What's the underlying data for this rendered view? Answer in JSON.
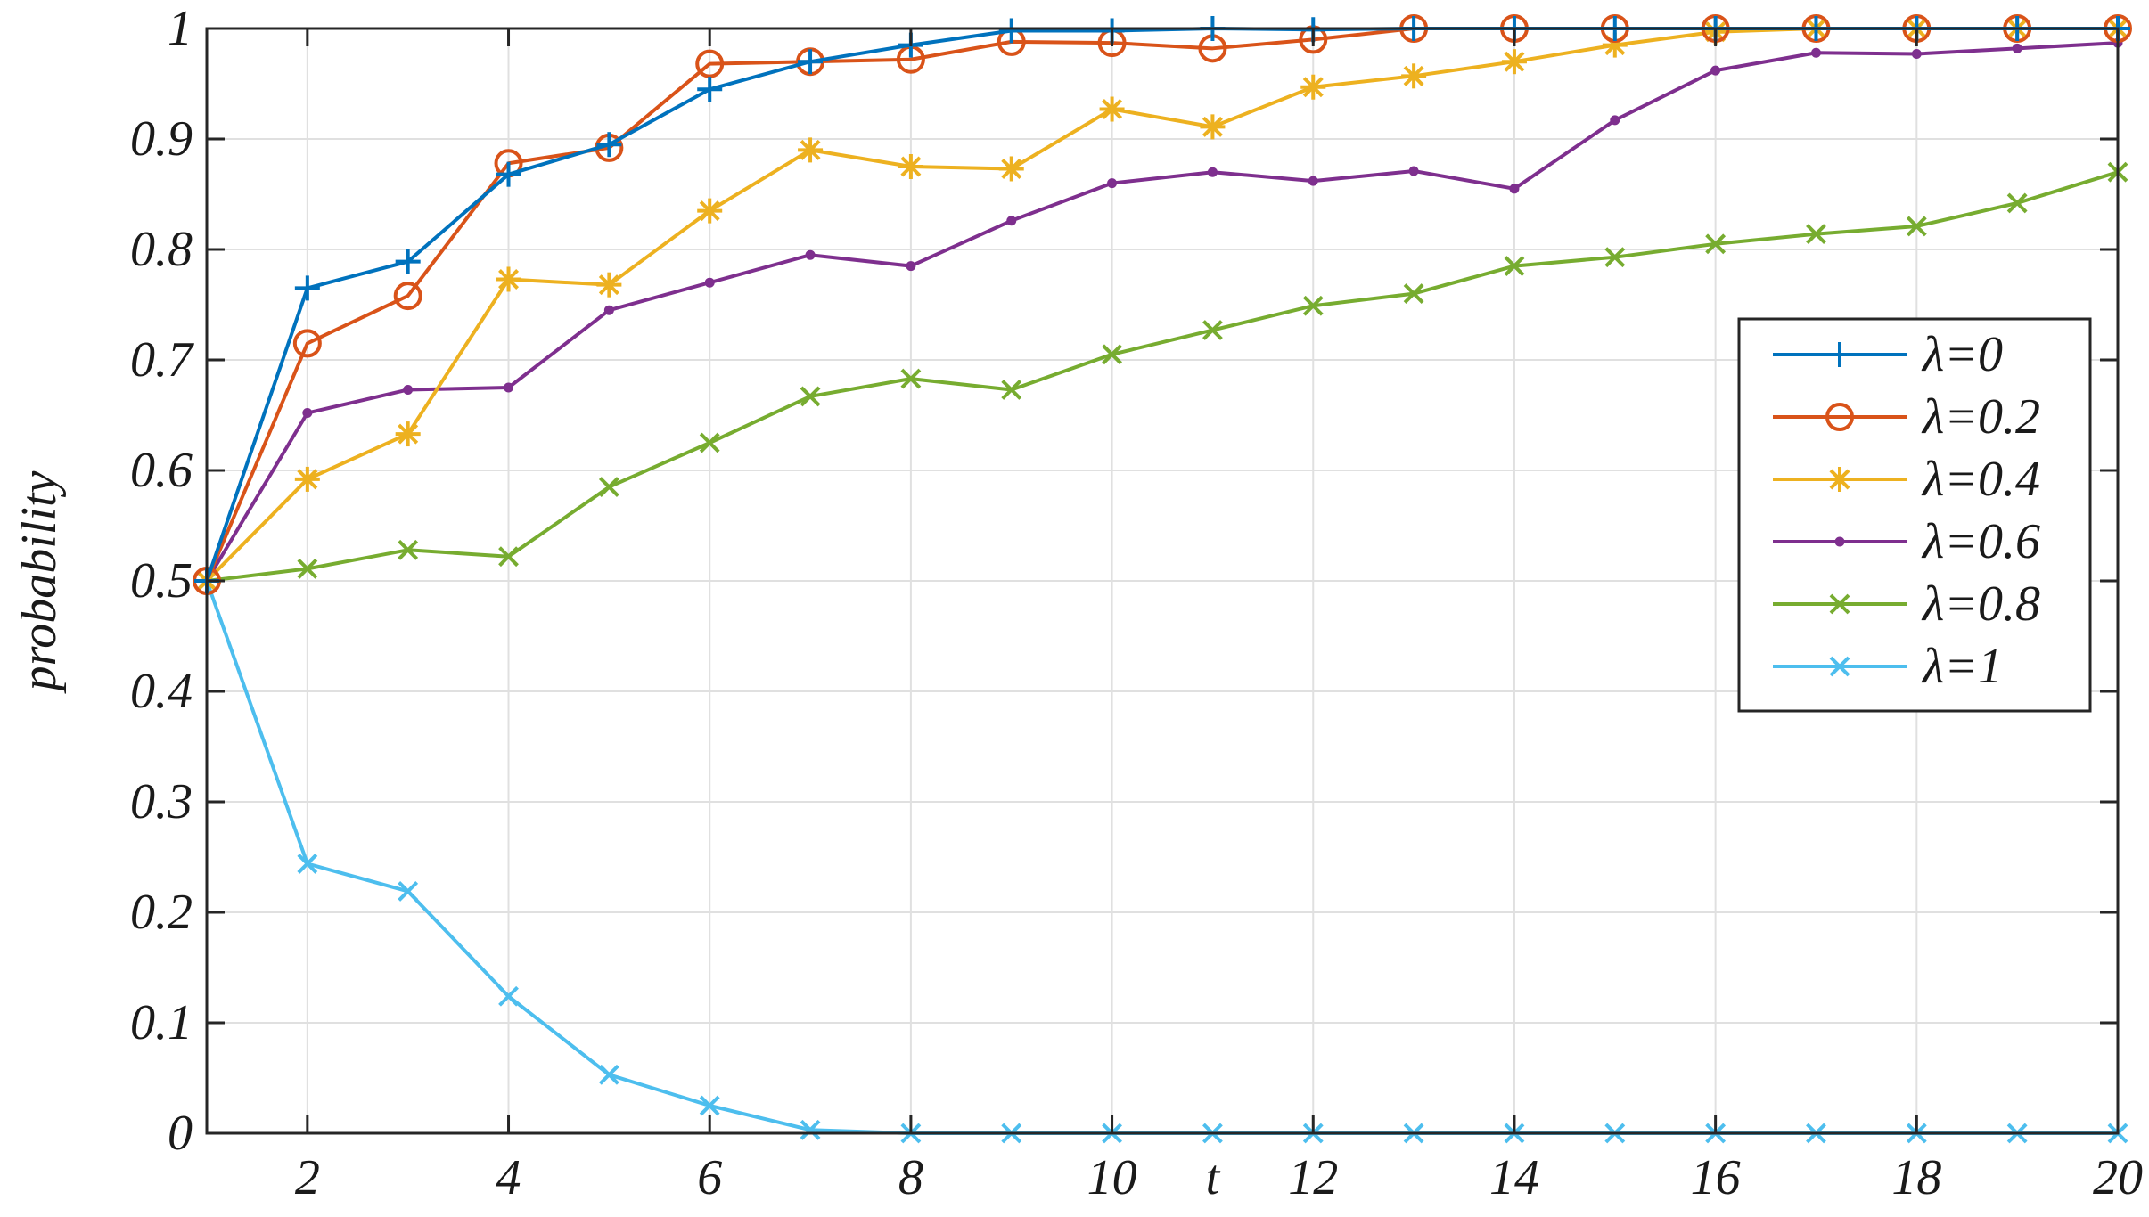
{
  "chart_data": {
    "type": "line",
    "title": "",
    "xlabel": "t",
    "ylabel": "probability",
    "xlim": [
      1,
      20
    ],
    "ylim": [
      0,
      1
    ],
    "x_ticks": [
      2,
      4,
      6,
      8,
      10,
      12,
      14,
      16,
      18,
      20
    ],
    "y_ticks": [
      0,
      0.1,
      0.2,
      0.3,
      0.4,
      0.5,
      0.6,
      0.7,
      0.8,
      0.9,
      1
    ],
    "grid": true,
    "legend_position": "right",
    "x": [
      1,
      2,
      3,
      4,
      5,
      6,
      7,
      8,
      9,
      10,
      11,
      12,
      13,
      14,
      15,
      16,
      17,
      18,
      19,
      20
    ],
    "series": [
      {
        "name": "λ=0",
        "color": "#0072BD",
        "marker": "plus",
        "values": [
          0.5,
          0.765,
          0.789,
          0.868,
          0.895,
          0.945,
          0.97,
          0.985,
          0.998,
          0.998,
          1.0,
          0.999,
          1.0,
          1.0,
          1.0,
          1.0,
          1.0,
          1.0,
          1.0,
          1.0
        ]
      },
      {
        "name": "λ=0.2",
        "color": "#D95319",
        "marker": "circle",
        "values": [
          0.5,
          0.715,
          0.758,
          0.878,
          0.892,
          0.968,
          0.97,
          0.972,
          0.988,
          0.987,
          0.982,
          0.99,
          1.0,
          1.0,
          1.0,
          1.0,
          1.0,
          1.0,
          1.0,
          1.0
        ]
      },
      {
        "name": "λ=0.4",
        "color": "#EDB120",
        "marker": "asterisk",
        "values": [
          0.5,
          0.592,
          0.633,
          0.773,
          0.768,
          0.835,
          0.89,
          0.875,
          0.873,
          0.927,
          0.911,
          0.947,
          0.957,
          0.97,
          0.985,
          0.997,
          1.0,
          1.0,
          1.0,
          1.0
        ]
      },
      {
        "name": "λ=0.6",
        "color": "#7E2F8E",
        "marker": "dot",
        "values": [
          0.5,
          0.652,
          0.673,
          0.675,
          0.745,
          0.77,
          0.795,
          0.785,
          0.826,
          0.86,
          0.87,
          0.862,
          0.871,
          0.855,
          0.917,
          0.962,
          0.978,
          0.977,
          0.982,
          0.987
        ]
      },
      {
        "name": "λ=0.8",
        "color": "#77AC30",
        "marker": "x",
        "values": [
          0.5,
          0.511,
          0.528,
          0.522,
          0.585,
          0.625,
          0.667,
          0.683,
          0.673,
          0.705,
          0.727,
          0.749,
          0.76,
          0.785,
          0.793,
          0.805,
          0.814,
          0.821,
          0.842,
          0.87
        ]
      },
      {
        "name": "λ=1",
        "color": "#4DBEEE",
        "marker": "x",
        "values": [
          0.5,
          0.244,
          0.219,
          0.124,
          0.053,
          0.025,
          0.003,
          0.0,
          0.0,
          0.0,
          0.0,
          0.0,
          0.0,
          0.0,
          0.0,
          0.0,
          0.0,
          0.0,
          0.0,
          0.0
        ]
      }
    ]
  }
}
